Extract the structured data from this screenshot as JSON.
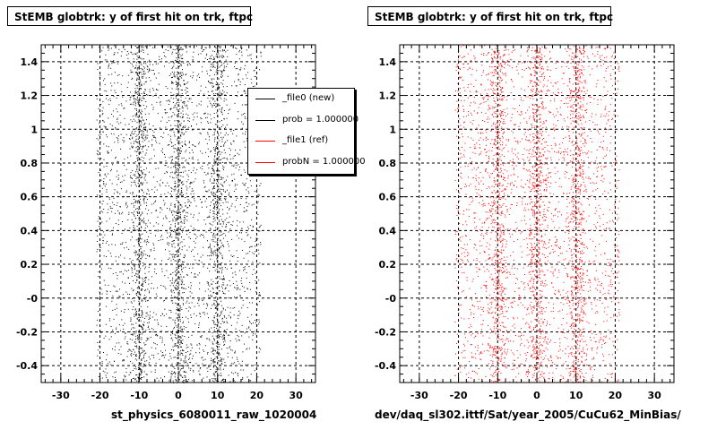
{
  "pages": [
    {
      "title": "StEMB globtrk: y of first hit on trk, ftpc",
      "xlabel": "st_physics_6080011_raw_1020004"
    },
    {
      "title": "StEMB globtrk: y of first hit on trk, ftpc",
      "xlabel": "dev/daq_sl302.ittf/Sat/year_2005/CuCu62_MinBias/"
    }
  ],
  "legend": {
    "items": [
      {
        "label": "_file0 (new)",
        "color": "#000000"
      },
      {
        "label": "prob = 1.000000",
        "color": "#000000"
      },
      {
        "label": "_file1 (ref)",
        "color": "#ff0000"
      },
      {
        "label": "probN = 1.000000",
        "color": "#ff0000"
      }
    ]
  },
  "chart_data": [
    {
      "type": "scatter",
      "title": "StEMB globtrk: y of first hit on trk, ftpc",
      "xlabel": "st_physics_6080011_raw_1020004",
      "ylabel": "",
      "xlim": [
        -35,
        35
      ],
      "ylim": [
        -0.5,
        1.5
      ],
      "xticks": [
        -30,
        -20,
        -10,
        0,
        10,
        20,
        30
      ],
      "yticks": [
        -0.4,
        -0.2,
        0,
        0.2,
        0.4,
        0.6,
        0.8,
        1,
        1.2,
        1.4
      ],
      "ytick_labels": [
        "-0.4",
        "-0.2",
        "-0",
        "0.2",
        "0.4",
        "0.6",
        "0.8",
        "1",
        "1.2",
        "1.4"
      ],
      "grid": true,
      "legend_position": "top-right",
      "series": [
        {
          "name": "_file0 (new)",
          "color": "#000000",
          "x_range": [
            -21,
            21
          ],
          "y_range": [
            -0.5,
            1.5
          ],
          "dense_x_bands": [
            -10,
            0,
            10
          ]
        }
      ]
    },
    {
      "type": "scatter",
      "title": "StEMB globtrk: y of first hit on trk, ftpc",
      "xlabel": "dev/daq_sl302.ittf/Sat/year_2005/CuCu62_MinBias/",
      "ylabel": "",
      "xlim": [
        -35,
        35
      ],
      "ylim": [
        -0.5,
        1.5
      ],
      "xticks": [
        -30,
        -20,
        -10,
        0,
        10,
        20,
        30
      ],
      "yticks": [
        -0.4,
        -0.2,
        0,
        0.2,
        0.4,
        0.6,
        0.8,
        1,
        1.2,
        1.4
      ],
      "ytick_labels": [
        "-0.4",
        "-0.2",
        "-0",
        "0.2",
        "0.4",
        "0.6",
        "0.8",
        "1",
        "1.2",
        "1.4"
      ],
      "grid": true,
      "series": [
        {
          "name": "_file1 (ref)",
          "color": "#ff0000",
          "x_range": [
            -21,
            21
          ],
          "y_range": [
            -0.5,
            1.5
          ],
          "dense_x_bands": [
            -10,
            0,
            10
          ]
        }
      ]
    }
  ]
}
